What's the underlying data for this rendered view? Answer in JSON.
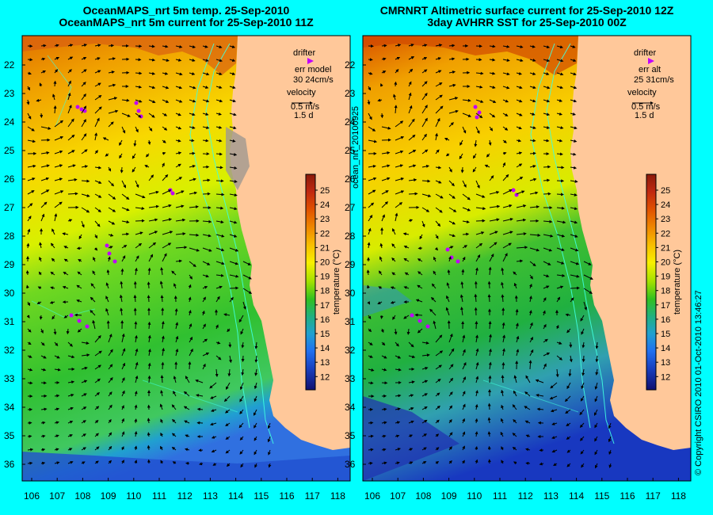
{
  "left_panel": {
    "title_line1": "OceanMAPS_nrt 5m temp. 25-Sep-2010",
    "title_line2": "OceanMAPS_nrt 5m current for 25-Sep-2010 11Z",
    "legend": {
      "drifter": "drifter",
      "err_label": "err model",
      "err_values": "30 24cm/s",
      "velocity": "velocity",
      "speed": "0.5 m/s",
      "duration": "1.5 d"
    }
  },
  "right_panel": {
    "title_line1": "CMRNRT Altimetric surface current for 25-Sep-2010 12Z",
    "title_line2": "3day AVHRR SST for 25-Sep-2010 00Z",
    "legend": {
      "drifter": "drifter",
      "err_label": "err alt",
      "err_values": "25 31cm/s",
      "velocity": "velocity",
      "speed": "0.5 m/s",
      "duration": "1.5 d"
    }
  },
  "axes": {
    "latitudes": [
      "22",
      "23",
      "24",
      "25",
      "26",
      "27",
      "28",
      "29",
      "30",
      "31",
      "32",
      "33",
      "34",
      "35",
      "36"
    ],
    "longitudes": [
      "106",
      "107",
      "108",
      "109",
      "110",
      "111",
      "112",
      "113",
      "114",
      "115",
      "116",
      "117",
      "118"
    ]
  },
  "colorbar": {
    "label": "temperature (°C)",
    "ticks": [
      "25",
      "24",
      "23",
      "22",
      "21",
      "20",
      "19",
      "18",
      "17",
      "16",
      "15",
      "14",
      "13",
      "12"
    ],
    "colors": [
      "#8b1a0a",
      "#b02010",
      "#d84000",
      "#e86a00",
      "#f0a000",
      "#f8d000",
      "#e0f000",
      "#90e000",
      "#30c020",
      "#20b060",
      "#20a0c0",
      "#2060e0",
      "#1830b0",
      "#101070"
    ]
  },
  "side_labels": {
    "file_id": "ocean_nrt_20100925",
    "copyright": "© Copyright CSIRO 2010  01-Oct-2010 13:46:27"
  },
  "colors": {
    "background": "#00ffff",
    "land": "#ffc89a",
    "drifter": "#c000ff",
    "isobath": "#40ffe0"
  }
}
